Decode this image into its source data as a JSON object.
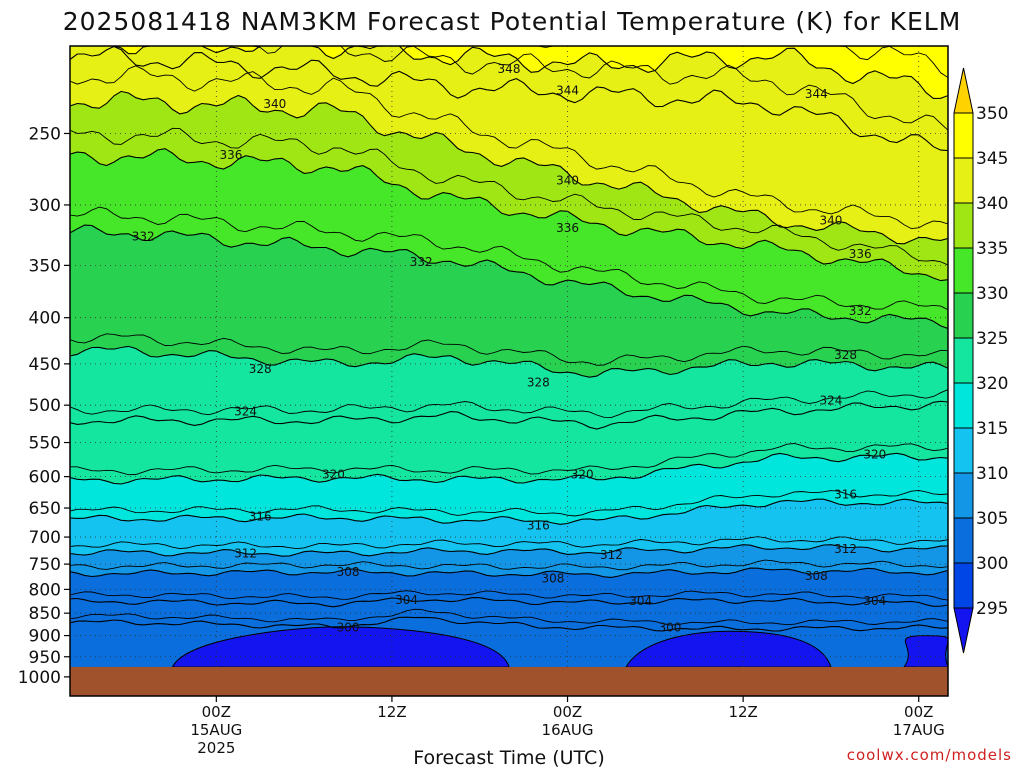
{
  "chart_data": {
    "type": "heatmap",
    "title": "2025081418 NAM3KM Forecast Potential Temperature (K) for KELM",
    "xlabel": "Forecast Time (UTC)",
    "ylabel": "",
    "x_range_hours": [
      -4,
      56
    ],
    "y_range_hpa": [
      200,
      1050
    ],
    "y_scale": "log",
    "y_ticks": [
      250,
      300,
      350,
      400,
      450,
      500,
      550,
      600,
      650,
      700,
      750,
      800,
      850,
      900,
      950,
      1000
    ],
    "x_ticks": [
      {
        "hour": 6,
        "line1": "00Z",
        "line2": "15AUG",
        "line3": "2025"
      },
      {
        "hour": 18,
        "line1": "12Z",
        "line2": "",
        "line3": ""
      },
      {
        "hour": 30,
        "line1": "00Z",
        "line2": "16AUG",
        "line3": ""
      },
      {
        "hour": 42,
        "line1": "12Z",
        "line2": "",
        "line3": ""
      },
      {
        "hour": 54,
        "line1": "00Z",
        "line2": "17AUG",
        "line3": ""
      }
    ],
    "colorbar": {
      "levels": [
        295,
        300,
        305,
        310,
        315,
        320,
        325,
        330,
        335,
        340,
        345,
        350
      ],
      "labels": [
        "295",
        "300",
        "305",
        "310",
        "315",
        "320",
        "325",
        "330",
        "335",
        "340",
        "345",
        "350"
      ],
      "colors": [
        "#1414f0",
        "#0046e6",
        "#0a6edc",
        "#1496e6",
        "#14c3f0",
        "#00e6dc",
        "#14e6a0",
        "#28d250",
        "#46e628",
        "#a0e614",
        "#e6f014",
        "#ffff00",
        "#ffd200"
      ]
    },
    "ground_color": "#a0522d",
    "grid": true,
    "contour_series": [
      {
        "theta": 300,
        "label": "300",
        "profile": [
          [
            0,
            870
          ],
          [
            14,
            880
          ],
          [
            20,
            860
          ],
          [
            28,
            880
          ],
          [
            40,
            885
          ],
          [
            56,
            882
          ]
        ]
      },
      {
        "theta": 304,
        "label": "304",
        "profile": [
          [
            0,
            825
          ],
          [
            14,
            830
          ],
          [
            20,
            820
          ],
          [
            32,
            828
          ],
          [
            40,
            822
          ],
          [
            56,
            830
          ]
        ]
      },
      {
        "theta": 308,
        "label": "308",
        "profile": [
          [
            0,
            768
          ],
          [
            14,
            765
          ],
          [
            22,
            768
          ],
          [
            32,
            770
          ],
          [
            44,
            762
          ],
          [
            56,
            766
          ]
        ]
      },
      {
        "theta": 312,
        "label": "312",
        "profile": [
          [
            0,
            728
          ],
          [
            14,
            730
          ],
          [
            22,
            725
          ],
          [
            32,
            727
          ],
          [
            44,
            718
          ],
          [
            56,
            722
          ]
        ]
      },
      {
        "theta": 316,
        "label": "316",
        "profile": [
          [
            0,
            668
          ],
          [
            14,
            666
          ],
          [
            22,
            670
          ],
          [
            32,
            672
          ],
          [
            44,
            640
          ],
          [
            56,
            642
          ]
        ]
      },
      {
        "theta": 320,
        "label": "320",
        "profile": [
          [
            0,
            605
          ],
          [
            14,
            602
          ],
          [
            22,
            604
          ],
          [
            32,
            604
          ],
          [
            44,
            572
          ],
          [
            56,
            570
          ]
        ]
      },
      {
        "theta": 324,
        "label": "324",
        "profile": [
          [
            0,
            520
          ],
          [
            14,
            520
          ],
          [
            22,
            514
          ],
          [
            32,
            525
          ],
          [
            44,
            508
          ],
          [
            56,
            498
          ]
        ]
      },
      {
        "theta": 328,
        "label": "328",
        "profile": [
          [
            0,
            435
          ],
          [
            14,
            450
          ],
          [
            22,
            442
          ],
          [
            32,
            462
          ],
          [
            44,
            448
          ],
          [
            56,
            455
          ]
        ]
      },
      {
        "theta": 332,
        "label": "332",
        "profile": [
          [
            0,
            322
          ],
          [
            14,
            335
          ],
          [
            22,
            345
          ],
          [
            32,
            370
          ],
          [
            44,
            395
          ],
          [
            56,
            405
          ]
        ]
      },
      {
        "theta": 336,
        "label": "336",
        "profile": [
          [
            0,
            265
          ],
          [
            14,
            272
          ],
          [
            22,
            295
          ],
          [
            32,
            315
          ],
          [
            44,
            335
          ],
          [
            56,
            360
          ]
        ]
      },
      {
        "theta": 340,
        "label": "340",
        "profile": [
          [
            0,
            230
          ],
          [
            14,
            236
          ],
          [
            22,
            258
          ],
          [
            32,
            282
          ],
          [
            44,
            312
          ],
          [
            56,
            330
          ]
        ]
      },
      {
        "theta": 344,
        "label": "344",
        "profile": [
          [
            0,
            206
          ],
          [
            14,
            214
          ],
          [
            22,
            222
          ],
          [
            32,
            226
          ],
          [
            44,
            232
          ],
          [
            56,
            262
          ]
        ]
      },
      {
        "theta": 348,
        "label": "348",
        "profile": [
          [
            0,
            198
          ],
          [
            14,
            200
          ],
          [
            22,
            205
          ],
          [
            32,
            210
          ],
          [
            44,
            205
          ],
          [
            56,
            225
          ]
        ]
      }
    ],
    "contour_labels": [
      {
        "text": "348",
        "hour": 26,
        "p": 212
      },
      {
        "text": "340",
        "hour": 10,
        "p": 232
      },
      {
        "text": "344",
        "hour": 30,
        "p": 224
      },
      {
        "text": "344",
        "hour": 47,
        "p": 226
      },
      {
        "text": "336",
        "hour": 7,
        "p": 264
      },
      {
        "text": "340",
        "hour": 30,
        "p": 282
      },
      {
        "text": "340",
        "hour": 48,
        "p": 312
      },
      {
        "text": "332",
        "hour": 1,
        "p": 325
      },
      {
        "text": "336",
        "hour": 30,
        "p": 318
      },
      {
        "text": "336",
        "hour": 50,
        "p": 340
      },
      {
        "text": "332",
        "hour": 20,
        "p": 347
      },
      {
        "text": "332",
        "hour": 50,
        "p": 393
      },
      {
        "text": "328",
        "hour": 9,
        "p": 456
      },
      {
        "text": "328",
        "hour": 28,
        "p": 472
      },
      {
        "text": "328",
        "hour": 49,
        "p": 440
      },
      {
        "text": "324",
        "hour": 8,
        "p": 508
      },
      {
        "text": "324",
        "hour": 48,
        "p": 494
      },
      {
        "text": "320",
        "hour": 14,
        "p": 597
      },
      {
        "text": "320",
        "hour": 31,
        "p": 597
      },
      {
        "text": "320",
        "hour": 51,
        "p": 567
      },
      {
        "text": "316",
        "hour": 9,
        "p": 664
      },
      {
        "text": "316",
        "hour": 28,
        "p": 680
      },
      {
        "text": "316",
        "hour": 49,
        "p": 628
      },
      {
        "text": "312",
        "hour": 8,
        "p": 730
      },
      {
        "text": "312",
        "hour": 33,
        "p": 733
      },
      {
        "text": "312",
        "hour": 49,
        "p": 722
      },
      {
        "text": "308",
        "hour": 15,
        "p": 765
      },
      {
        "text": "308",
        "hour": 29,
        "p": 778
      },
      {
        "text": "308",
        "hour": 47,
        "p": 773
      },
      {
        "text": "304",
        "hour": 19,
        "p": 822
      },
      {
        "text": "304",
        "hour": 35,
        "p": 824
      },
      {
        "text": "304",
        "hour": 51,
        "p": 824
      },
      {
        "text": "300",
        "hour": 15,
        "p": 882
      },
      {
        "text": "300",
        "hour": 37,
        "p": 882
      }
    ],
    "cold_pools": [
      {
        "label": "",
        "h0": 3,
        "h1": 26,
        "p_top": 880,
        "value": "<300"
      },
      {
        "label": "",
        "h0": 34,
        "h1": 48,
        "p_top": 890,
        "value": "<300"
      },
      {
        "label": "",
        "h0": 53,
        "h1": 56,
        "p_top": 900,
        "value": "<300"
      }
    ]
  },
  "credit": "coolwx.com/models"
}
